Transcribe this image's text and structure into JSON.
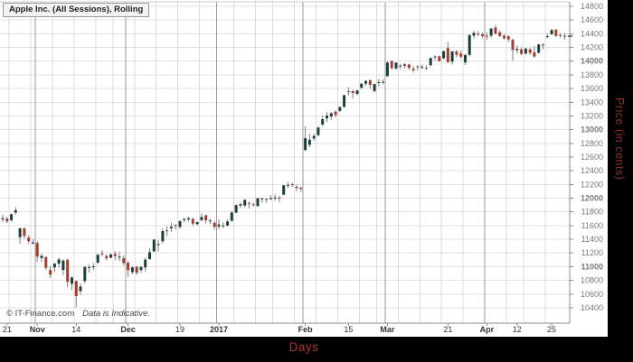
{
  "title": "Apple Inc. (All Sessions), Rolling",
  "watermark": {
    "copyright": "© IT-Finance.com",
    "note": "Data is Indicative."
  },
  "axes": {
    "y_label": "Price (in cents)",
    "x_label": "Days",
    "y_ticks": [
      10400,
      10600,
      10800,
      11000,
      11200,
      11400,
      11600,
      11800,
      12000,
      12200,
      12400,
      12600,
      12800,
      13000,
      13200,
      13400,
      13600,
      13800,
      14000,
      14200,
      14400,
      14600,
      14800
    ],
    "y_bold": [
      11000,
      12000,
      13000,
      14000
    ],
    "x_ticks": [
      {
        "label": "21",
        "i": 1,
        "bold": false
      },
      {
        "label": "Nov",
        "i": 8,
        "bold": true
      },
      {
        "label": "14",
        "i": 17,
        "bold": false
      },
      {
        "label": "Dec",
        "i": 29,
        "bold": true
      },
      {
        "label": "19",
        "i": 41,
        "bold": false
      },
      {
        "label": "2017",
        "i": 50,
        "bold": true
      },
      {
        "label": "Feb",
        "i": 70,
        "bold": true
      },
      {
        "label": "15",
        "i": 80,
        "bold": false
      },
      {
        "label": "Mar",
        "i": 89,
        "bold": true
      },
      {
        "label": "21",
        "i": 103,
        "bold": false
      },
      {
        "label": "Apr",
        "i": 112,
        "bold": true
      },
      {
        "label": "12",
        "i": 119,
        "bold": false
      },
      {
        "label": "25",
        "i": 127,
        "bold": false
      }
    ]
  },
  "colors": {
    "up": "#1c3e3c",
    "down": "#a63d30",
    "wick": "#808080",
    "grid": "#e3e3e3",
    "grid_week": "#dcdcdc",
    "grid_month": "#999999",
    "axis": "#888888",
    "tick_label": "#7a7a7a",
    "date_label": "#333333",
    "accent_red": "#a93535",
    "panel_black": "#000000",
    "last_dash": "#444444"
  },
  "chart_data": {
    "type": "candlestick",
    "title": "Apple Inc. (All Sessions), Rolling",
    "xlabel": "Days",
    "ylabel": "Price (in cents)",
    "ylim": [
      10176,
      14892
    ],
    "grid": true,
    "month_lines": [
      8,
      29,
      50,
      70,
      89,
      112
    ],
    "week_lines": [
      2,
      7,
      12,
      17,
      22,
      26,
      31,
      36,
      41,
      46,
      50,
      54,
      59,
      63,
      68,
      73,
      78,
      83,
      87,
      92,
      97,
      102,
      107,
      112,
      117,
      121,
      126
    ],
    "columns": [
      "date",
      "open",
      "high",
      "low",
      "close"
    ],
    "candles": [
      [
        "2016-10-20",
        11690,
        11760,
        11650,
        11706
      ],
      [
        "2016-10-21",
        11700,
        11730,
        11640,
        11660
      ],
      [
        "2016-10-24",
        11680,
        11778,
        11660,
        11765
      ],
      [
        "2016-10-25",
        11790,
        11870,
        11760,
        11825
      ],
      [
        "2016-10-26",
        11431,
        11570,
        11331,
        11559
      ],
      [
        "2016-10-27",
        11557,
        11580,
        11406,
        11448
      ],
      [
        "2016-10-28",
        11425,
        11462,
        11338,
        11372
      ],
      [
        "2016-10-31",
        11339,
        11403,
        11328,
        11354
      ],
      [
        "2016-11-01",
        11346,
        11375,
        11075,
        11149
      ],
      [
        "2016-11-02",
        11126,
        11190,
        11066,
        11159
      ],
      [
        "2016-11-03",
        11140,
        11152,
        10950,
        10983
      ],
      [
        "2016-11-04",
        10950,
        11010,
        10834,
        10884
      ],
      [
        "2016-11-07",
        10990,
        11060,
        10920,
        11041
      ],
      [
        "2016-11-08",
        11046,
        11132,
        10986,
        11106
      ],
      [
        "2016-11-09",
        10951,
        11114,
        10876,
        11088
      ],
      [
        "2016-11-10",
        11100,
        11117,
        10700,
        10779
      ],
      [
        "2016-11-11",
        10751,
        10858,
        10663,
        10843
      ],
      [
        "2016-11-14",
        10791,
        10800,
        10408,
        10571
      ],
      [
        "2016-11-15",
        10644,
        10750,
        10591,
        10711
      ],
      [
        "2016-11-16",
        10790,
        11000,
        10760,
        10999
      ],
      [
        "2016-11-17",
        10990,
        11032,
        10916,
        10995
      ],
      [
        "2016-11-18",
        11000,
        11054,
        10950,
        11006
      ],
      [
        "2016-11-21",
        11060,
        11190,
        11040,
        11173
      ],
      [
        "2016-11-22",
        11195,
        11245,
        11150,
        11180
      ],
      [
        "2016-11-23",
        11156,
        11184,
        11093,
        11123
      ],
      [
        "2016-11-25",
        11131,
        11190,
        11120,
        11179
      ],
      [
        "2016-11-28",
        11186,
        11230,
        11093,
        11157
      ],
      [
        "2016-11-29",
        11131,
        11220,
        11083,
        11146
      ],
      [
        "2016-11-30",
        11126,
        11163,
        11014,
        11052
      ],
      [
        "2016-12-01",
        11056,
        11082,
        10850,
        10949
      ],
      [
        "2016-12-02",
        10921,
        11011,
        10890,
        10990
      ],
      [
        "2016-12-05",
        11000,
        11010,
        10880,
        10911
      ],
      [
        "2016-12-06",
        10950,
        11010,
        10908,
        10995
      ],
      [
        "2016-12-07",
        10990,
        11133,
        10931,
        11103
      ],
      [
        "2016-12-08",
        11110,
        11270,
        11101,
        11212
      ],
      [
        "2016-12-09",
        11224,
        11400,
        11216,
        11395
      ],
      [
        "2016-12-12",
        11329,
        11387,
        11220,
        11330
      ],
      [
        "2016-12-13",
        11370,
        11557,
        11337,
        11519
      ],
      [
        "2016-12-14",
        11530,
        11589,
        11443,
        11519
      ],
      [
        "2016-12-15",
        11560,
        11640,
        11507,
        11582
      ],
      [
        "2016-12-16",
        11611,
        11616,
        11543,
        11597
      ],
      [
        "2016-12-19",
        11580,
        11680,
        11553,
        11664
      ],
      [
        "2016-12-20",
        11680,
        11714,
        11644,
        11695
      ],
      [
        "2016-12-21",
        11690,
        11727,
        11660,
        11706
      ],
      [
        "2016-12-22",
        11700,
        11710,
        11594,
        11629
      ],
      [
        "2016-12-23",
        11621,
        11663,
        11601,
        11652
      ],
      [
        "2016-12-27",
        11680,
        11780,
        11662,
        11726
      ],
      [
        "2016-12-28",
        11750,
        11762,
        11632,
        11676
      ],
      [
        "2016-12-29",
        11670,
        11701,
        11623,
        11673
      ],
      [
        "2016-12-30",
        11641,
        11670,
        11541,
        11582
      ],
      [
        "2017-01-03",
        11587,
        11694,
        11544,
        11615
      ],
      [
        "2017-01-04",
        11590,
        11650,
        11557,
        11602
      ],
      [
        "2017-01-05",
        11600,
        11692,
        11590,
        11661
      ],
      [
        "2017-01-06",
        11670,
        11811,
        11655,
        11791
      ],
      [
        "2017-01-09",
        11790,
        11907,
        11777,
        11899
      ],
      [
        "2017-01-10",
        11893,
        11938,
        11851,
        11911
      ],
      [
        "2017-01-11",
        11892,
        11981,
        11871,
        11975
      ],
      [
        "2017-01-12",
        11930,
        11949,
        11852,
        11925
      ],
      [
        "2017-01-13",
        11910,
        11940,
        11882,
        11904
      ],
      [
        "2017-01-17",
        11886,
        12000,
        11873,
        12000
      ],
      [
        "2017-01-18",
        11994,
        12007,
        11940,
        11999
      ],
      [
        "2017-01-19",
        11990,
        12002,
        11931,
        11978
      ],
      [
        "2017-01-20",
        11990,
        12045,
        11972,
        12000
      ],
      [
        "2017-01-23",
        12000,
        12061,
        11961,
        12008
      ],
      [
        "2017-01-24",
        12010,
        12033,
        11941,
        11997
      ],
      [
        "2017-01-25",
        12052,
        12192,
        12042,
        12188
      ],
      [
        "2017-01-26",
        12191,
        12230,
        12151,
        12194
      ],
      [
        "2017-01-27",
        12204,
        12222,
        12163,
        12195
      ],
      [
        "2017-01-30",
        12152,
        12200,
        12102,
        12163
      ],
      [
        "2017-01-31",
        12152,
        12170,
        12093,
        12135
      ],
      [
        "2017-02-01",
        12703,
        13049,
        12690,
        12875
      ],
      [
        "2017-02-02",
        12779,
        12941,
        12744,
        12853
      ],
      [
        "2017-02-03",
        12871,
        12941,
        12835,
        12908
      ],
      [
        "2017-02-06",
        12920,
        13050,
        12902,
        13029
      ],
      [
        "2017-02-07",
        13074,
        13211,
        13052,
        13153
      ],
      [
        "2017-02-08",
        13164,
        13258,
        13110,
        13204
      ],
      [
        "2017-02-09",
        13192,
        13252,
        13140,
        13242
      ],
      [
        "2017-02-10",
        13262,
        13283,
        13180,
        13212
      ],
      [
        "2017-02-13",
        13272,
        13342,
        13256,
        13329
      ],
      [
        "2017-02-14",
        13333,
        13510,
        13316,
        13502
      ],
      [
        "2017-02-15",
        13562,
        13620,
        13500,
        13551
      ],
      [
        "2017-02-16",
        13561,
        13582,
        13450,
        13535
      ],
      [
        "2017-02-17",
        13521,
        13580,
        13501,
        13572
      ],
      [
        "2017-02-21",
        13612,
        13682,
        13592,
        13670
      ],
      [
        "2017-02-22",
        13672,
        13722,
        13641,
        13711
      ],
      [
        "2017-02-23",
        13721,
        13734,
        13594,
        13653
      ],
      [
        "2017-02-24",
        13565,
        13670,
        13542,
        13666
      ],
      [
        "2017-02-27",
        13684,
        13742,
        13632,
        13693
      ],
      [
        "2017-02-28",
        13692,
        13731,
        13661,
        13699
      ],
      [
        "2017-03-01",
        13782,
        14000,
        13772,
        13979
      ],
      [
        "2017-03-02",
        14001,
        14008,
        13882,
        13896
      ],
      [
        "2017-03-03",
        13892,
        13980,
        13875,
        13978
      ],
      [
        "2017-03-06",
        13932,
        13960,
        13880,
        13934
      ],
      [
        "2017-03-07",
        13933,
        13972,
        13892,
        13952
      ],
      [
        "2017-03-08",
        13952,
        13959,
        13880,
        13900
      ],
      [
        "2017-03-09",
        13890,
        13930,
        13830,
        13868
      ],
      [
        "2017-03-10",
        13925,
        13940,
        13862,
        13914
      ],
      [
        "2017-03-13",
        13910,
        13950,
        13882,
        13920
      ],
      [
        "2017-03-14",
        13901,
        13942,
        13871,
        13899
      ],
      [
        "2017-03-15",
        13941,
        14051,
        13921,
        14046
      ],
      [
        "2017-03-16",
        14061,
        14083,
        14011,
        14069
      ],
      [
        "2017-03-17",
        14072,
        14083,
        13992,
        13999
      ],
      [
        "2017-03-20",
        14041,
        14150,
        14031,
        14146
      ],
      [
        "2017-03-21",
        14192,
        14280,
        13973,
        13984
      ],
      [
        "2017-03-22",
        13990,
        14148,
        13952,
        14142
      ],
      [
        "2017-03-23",
        14141,
        14162,
        14051,
        14092
      ],
      [
        "2017-03-24",
        14111,
        14160,
        14031,
        14064
      ],
      [
        "2017-03-27",
        13981,
        14110,
        13941,
        14088
      ],
      [
        "2017-03-28",
        14091,
        14390,
        14071,
        14380
      ],
      [
        "2017-03-29",
        14371,
        14442,
        14331,
        14412
      ],
      [
        "2017-03-30",
        14401,
        14438,
        14361,
        14393
      ],
      [
        "2017-03-31",
        14392,
        14421,
        14333,
        14366
      ],
      [
        "2017-04-03",
        14371,
        14421,
        14311,
        14370
      ],
      [
        "2017-04-04",
        14371,
        14478,
        14341,
        14477
      ],
      [
        "2017-04-05",
        14491,
        14527,
        14391,
        14402
      ],
      [
        "2017-04-06",
        14421,
        14451,
        14351,
        14366
      ],
      [
        "2017-04-07",
        14371,
        14400,
        14311,
        14334
      ],
      [
        "2017-04-10",
        14361,
        14381,
        14281,
        14317
      ],
      [
        "2017-04-11",
        14311,
        14331,
        14006,
        14163
      ],
      [
        "2017-04-12",
        14161,
        14231,
        14111,
        14180
      ],
      [
        "2017-04-13",
        14171,
        14201,
        14091,
        14105
      ],
      [
        "2017-04-17",
        14111,
        14191,
        14091,
        14183
      ],
      [
        "2017-04-18",
        14171,
        14192,
        14091,
        14120
      ],
      [
        "2017-04-19",
        14131,
        14221,
        14051,
        14068
      ],
      [
        "2017-04-20",
        14121,
        14250,
        14111,
        14244
      ],
      [
        "2017-04-21",
        14241,
        14261,
        14171,
        14227
      ],
      [
        "2017-04-24",
        14361,
        14401,
        14331,
        14364
      ],
      [
        "2017-04-25",
        14391,
        14471,
        14381,
        14453
      ],
      [
        "2017-04-26",
        14461,
        14462,
        14351,
        14368
      ],
      [
        "2017-04-27",
        14381,
        14411,
        14341,
        14379
      ],
      [
        "2017-04-28",
        14371,
        14411,
        14311,
        14365
      ]
    ]
  }
}
